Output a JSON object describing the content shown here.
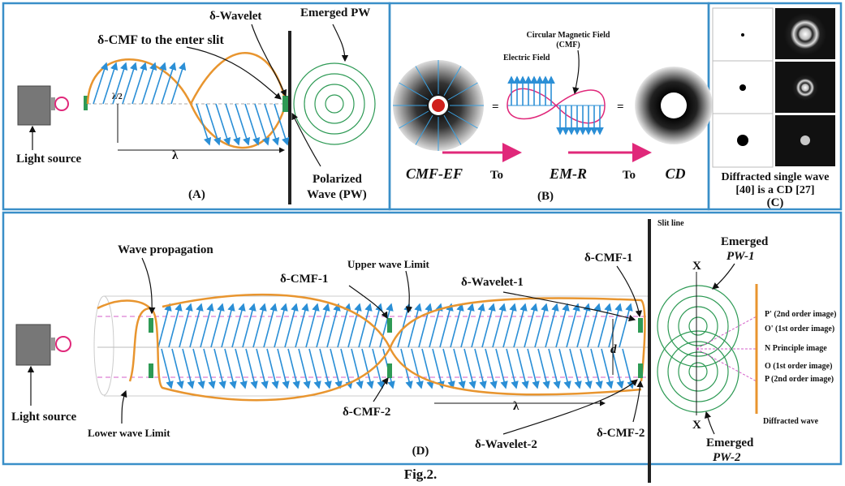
{
  "panel_a": {
    "delta_wavelet": "δ-Wavelet",
    "emerged_pw": "Emerged PW",
    "cmf_to_slit": "δ-CMF to the enter slit",
    "half_wavelength": "λ/2",
    "wavelength": "λ",
    "light_source": "Light source",
    "polarized_wave": [
      "Polarized",
      "Wave (PW)"
    ],
    "label": "(A)"
  },
  "panel_b": {
    "cmf": [
      "Circular Magnetic Field",
      "(CMF)"
    ],
    "electric_field": "Electric Field",
    "equals": [
      "=",
      "="
    ],
    "sequence": [
      "CMF-EF",
      "To",
      "EM-R",
      "To",
      "CD"
    ],
    "label": "(B)"
  },
  "panel_c": {
    "caption": [
      "Diffracted single wave",
      "[40] is a CD [27]"
    ],
    "label": "(C)"
  },
  "panel_d": {
    "slit_line": "Slit line",
    "emerged_pw1": [
      "Emerged",
      "PW-1"
    ],
    "wave_propagation": "Wave propagation",
    "cmf1_left": "δ-CMF-1",
    "upper_limit": "Upper wave Limit",
    "wavelet1": "δ-Wavelet-1",
    "cmf1_right": "δ-CMF-1",
    "x_top": "X",
    "images": [
      "P' (2nd order image)",
      "O' (1st order image)",
      "N Principle image",
      "O (1st order image)",
      "P (2nd order image)"
    ],
    "d": "d",
    "wavelength": "λ",
    "cmf2_left": "δ-CMF-2",
    "wavelet2": "δ-Wavelet-2",
    "cmf2_right": "δ-CMF-2",
    "light_source": "Light source",
    "lower_limit": "Lower wave Limit",
    "x_bottom": "X",
    "diffracted_wave": "Diffracted wave",
    "emerged_pw2": [
      "Emerged",
      "PW-2"
    ],
    "label": "(D)"
  },
  "caption": "Fig.2."
}
